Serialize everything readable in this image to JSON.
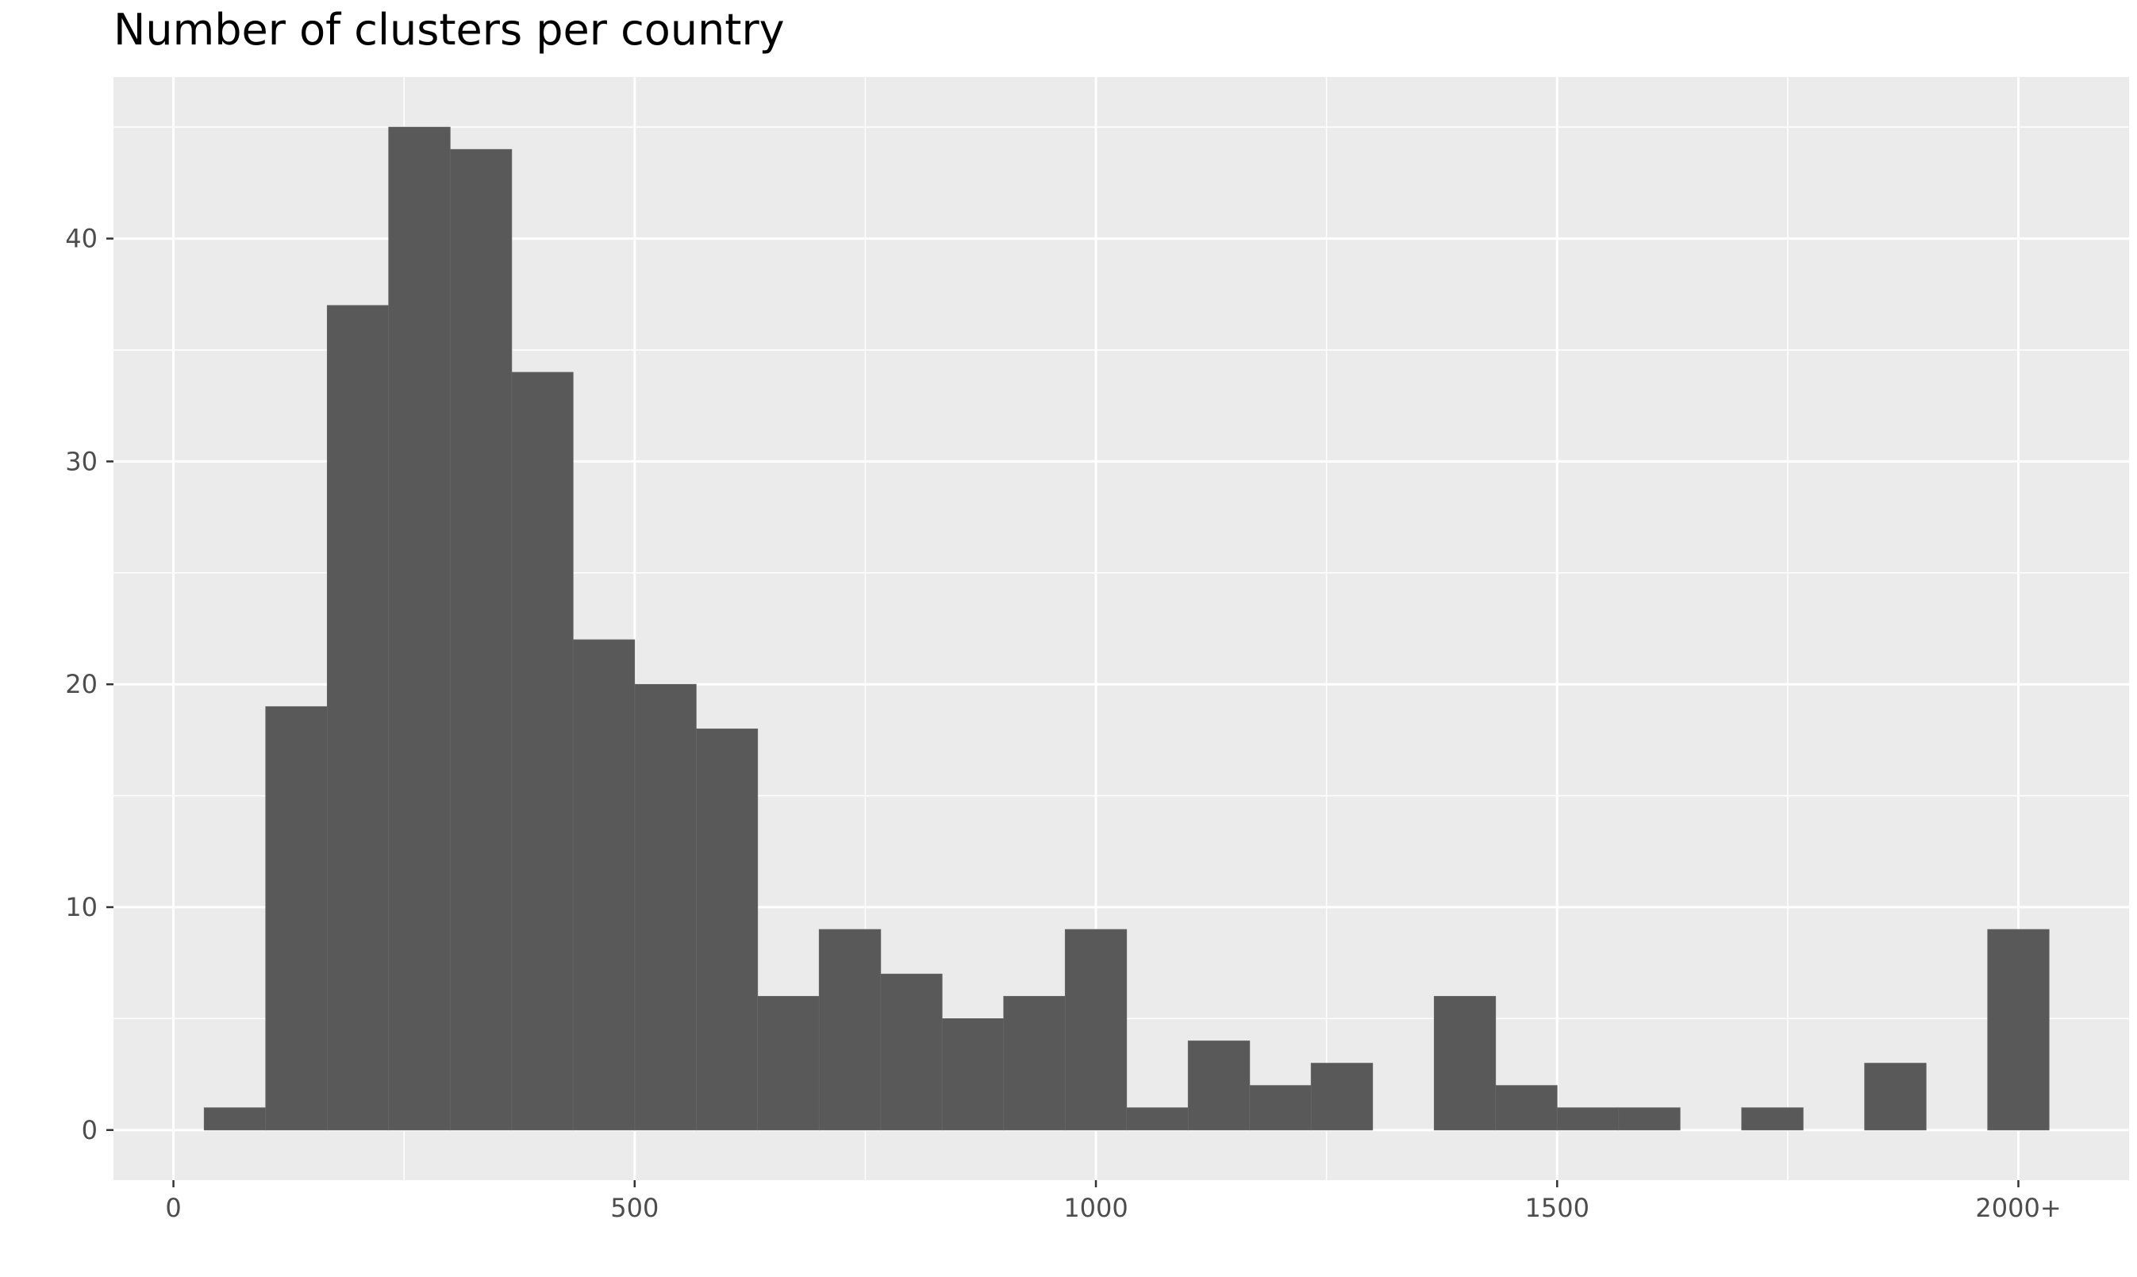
{
  "chart_data": {
    "type": "bar",
    "title": "Number of clusters per country",
    "xlabel": "",
    "ylabel": "",
    "x_ticks": [
      "0",
      "500",
      "1000",
      "1500",
      "2000+"
    ],
    "y_ticks": [
      "0",
      "10",
      "20",
      "30",
      "40"
    ],
    "xlim": [
      -65,
      2120
    ],
    "ylim": [
      -2.25,
      47.25
    ],
    "grid": true,
    "bin_width": 66.7,
    "bins": [
      {
        "start": 33.3,
        "end": 100.0,
        "count": 1
      },
      {
        "start": 100.0,
        "end": 166.7,
        "count": 19
      },
      {
        "start": 166.7,
        "end": 233.3,
        "count": 37
      },
      {
        "start": 233.3,
        "end": 300.0,
        "count": 45
      },
      {
        "start": 300.0,
        "end": 366.7,
        "count": 44
      },
      {
        "start": 366.7,
        "end": 433.3,
        "count": 34
      },
      {
        "start": 433.3,
        "end": 500.0,
        "count": 22
      },
      {
        "start": 500.0,
        "end": 566.7,
        "count": 20
      },
      {
        "start": 566.7,
        "end": 633.3,
        "count": 18
      },
      {
        "start": 633.3,
        "end": 700.0,
        "count": 6
      },
      {
        "start": 700.0,
        "end": 766.7,
        "count": 9
      },
      {
        "start": 766.7,
        "end": 833.3,
        "count": 7
      },
      {
        "start": 833.3,
        "end": 900.0,
        "count": 5
      },
      {
        "start": 900.0,
        "end": 966.7,
        "count": 6
      },
      {
        "start": 966.7,
        "end": 1033.3,
        "count": 9
      },
      {
        "start": 1033.3,
        "end": 1100.0,
        "count": 1
      },
      {
        "start": 1100.0,
        "end": 1166.7,
        "count": 4
      },
      {
        "start": 1166.7,
        "end": 1233.3,
        "count": 2
      },
      {
        "start": 1233.3,
        "end": 1300.0,
        "count": 3
      },
      {
        "start": 1366.7,
        "end": 1433.3,
        "count": 6
      },
      {
        "start": 1433.3,
        "end": 1500.0,
        "count": 2
      },
      {
        "start": 1500.0,
        "end": 1566.7,
        "count": 1
      },
      {
        "start": 1566.7,
        "end": 1633.3,
        "count": 1
      },
      {
        "start": 1700.0,
        "end": 1766.7,
        "count": 1
      },
      {
        "start": 1833.3,
        "end": 1900.0,
        "count": 3
      },
      {
        "start": 1966.7,
        "end": 2033.3,
        "count": 9
      }
    ],
    "colors": {
      "bar_fill": "#595959",
      "bar_edge": "#666666",
      "panel_bg": "#EBEBEB",
      "grid": "#FFFFFF",
      "tick_label": "#4D4D4D",
      "tick_mark": "#333333"
    }
  }
}
